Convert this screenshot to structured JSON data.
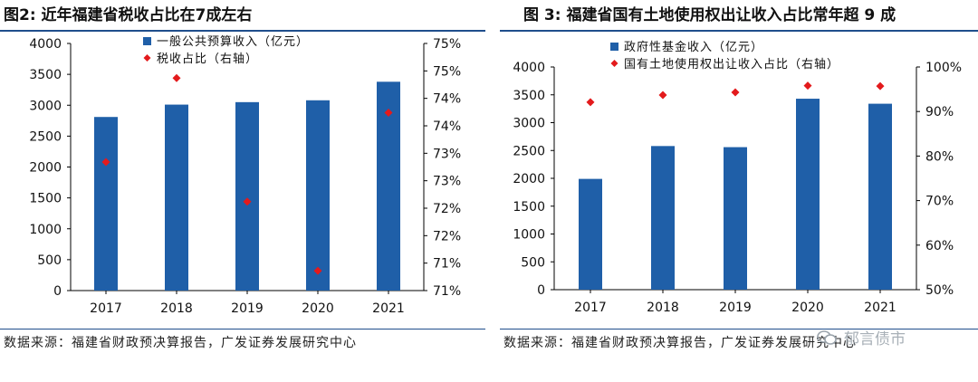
{
  "figures": [
    {
      "title": "图2:  近年福建省税收占比在7成左右",
      "source": "数据来源：福建省财政预决算报告，广发证券发展研究中心"
    },
    {
      "title": "图 3: 福建省国有土地使用权出让收入占比常年超 9 成",
      "source": "数据来源：福建省财政预决算报告，广发证券发展研究中心"
    }
  ],
  "watermark": "郁言债市",
  "colors": {
    "bar": "#1f5fa8",
    "marker": "#e31a1c",
    "rule": "#1f4e8c"
  },
  "chart_data": [
    {
      "type": "bar",
      "categories": [
        "2017",
        "2018",
        "2019",
        "2020",
        "2021"
      ],
      "series": [
        {
          "name": "一般公共预算收入（亿元）",
          "type": "bar",
          "axis": "left",
          "values": [
            2810,
            3010,
            3050,
            3080,
            3380
          ]
        },
        {
          "name": "税收占比（右轴）",
          "type": "scatter",
          "axis": "right",
          "marker": "diamond",
          "values": [
            73.1,
            74.8,
            72.3,
            70.9,
            74.1
          ]
        }
      ],
      "yticks": [
        "0",
        "500",
        "1000",
        "1500",
        "2000",
        "2500",
        "3000",
        "3500",
        "4000"
      ],
      "ylim": [
        0,
        4000
      ],
      "y2ticks": [
        "71%",
        "71%",
        "72%",
        "72%",
        "73%",
        "73%",
        "74%",
        "74%",
        "75%",
        "75%"
      ],
      "y2lim": [
        70.5,
        75.5
      ],
      "legend": "top-left"
    },
    {
      "type": "bar",
      "categories": [
        "2017",
        "2018",
        "2019",
        "2020",
        "2021"
      ],
      "series": [
        {
          "name": "政府性基金收入（亿元）",
          "type": "bar",
          "axis": "left",
          "values": [
            1990,
            2580,
            2560,
            3430,
            3340
          ]
        },
        {
          "name": "国有土地使用权出让收入占比（右轴）",
          "type": "scatter",
          "axis": "right",
          "marker": "diamond",
          "values": [
            92.1,
            93.7,
            94.3,
            95.8,
            95.7
          ]
        }
      ],
      "yticks": [
        "0",
        "500",
        "1000",
        "1500",
        "2000",
        "2500",
        "3000",
        "3500",
        "4000"
      ],
      "ylim": [
        0,
        4000
      ],
      "y2ticks": [
        "50%",
        "60%",
        "70%",
        "80%",
        "90%",
        "100%"
      ],
      "y2lim": [
        50,
        100
      ],
      "legend": "top-left"
    }
  ]
}
